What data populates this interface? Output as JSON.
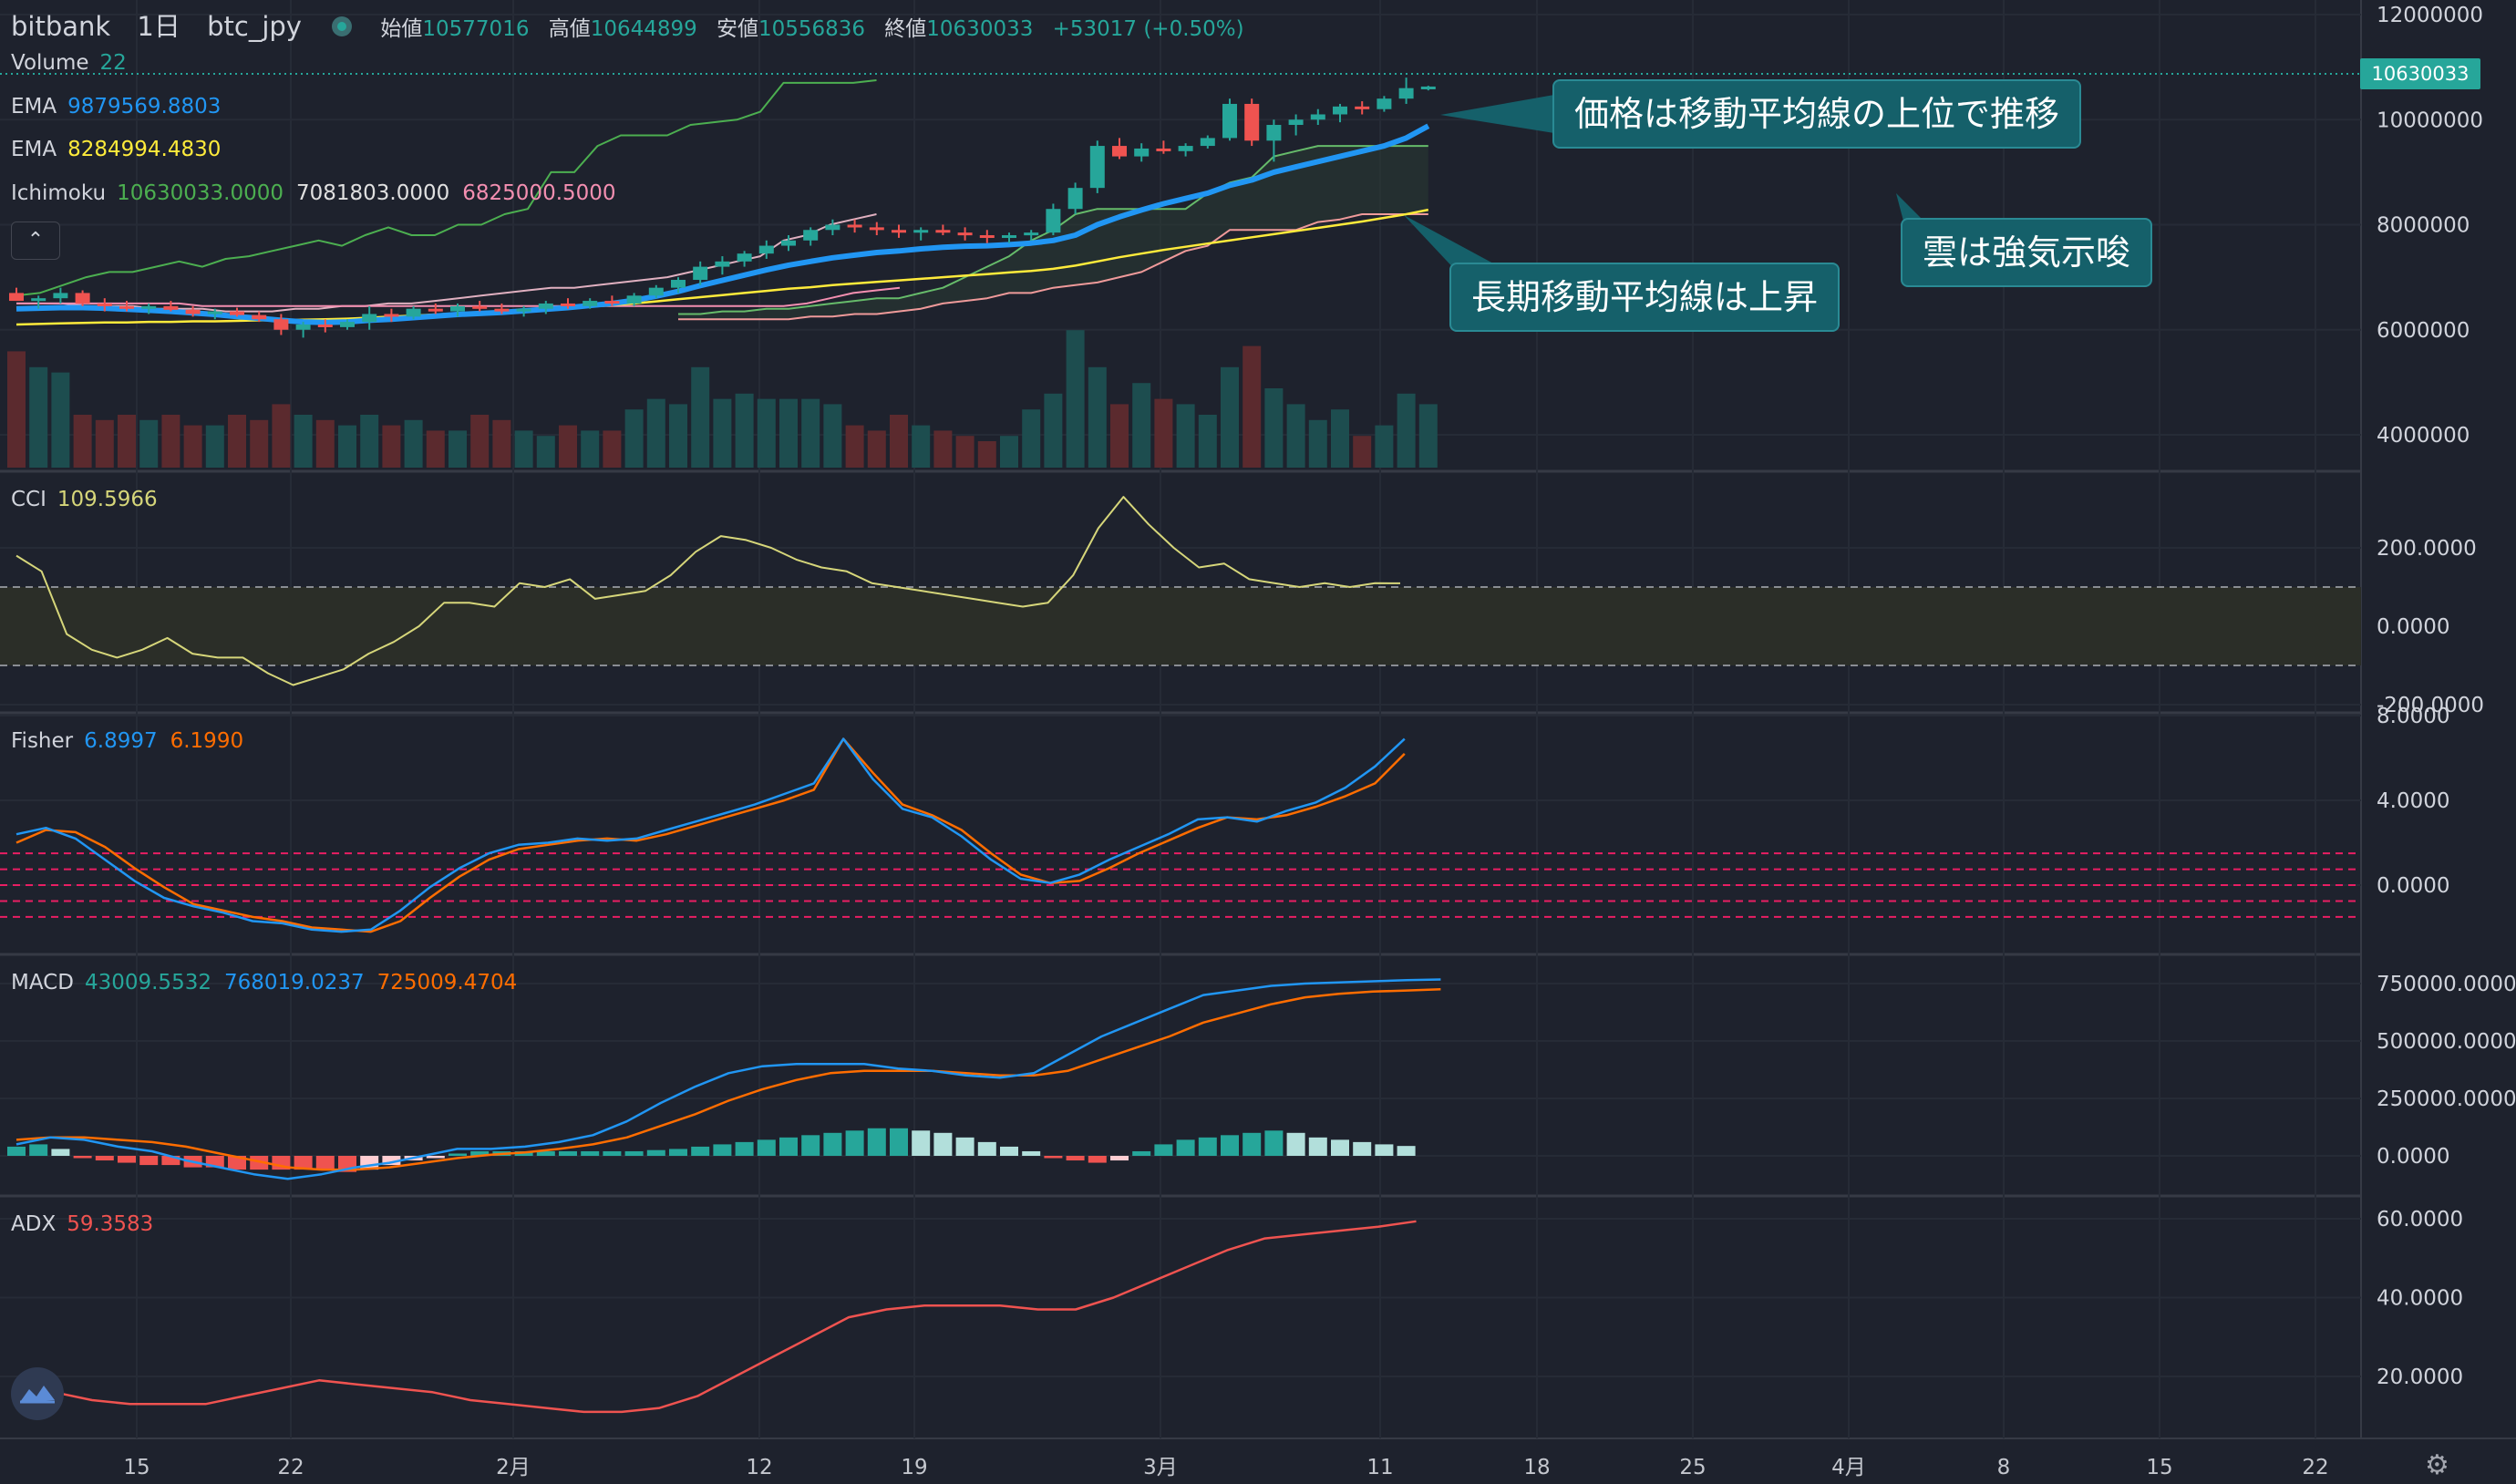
{
  "header": {
    "symbol": "bitbank",
    "interval": "1日",
    "pair": "btc_jpy",
    "open_label": "始値",
    "open": "10577016",
    "high_label": "高値",
    "high": "10644899",
    "low_label": "安値",
    "low": "10556836",
    "close_label": "終値",
    "close": "10630033",
    "change": "+53017 (+0.50%)"
  },
  "legends": {
    "volume": {
      "label": "Volume",
      "value": "22"
    },
    "ema1": {
      "label": "EMA",
      "value": "9879569.8803"
    },
    "ema2": {
      "label": "EMA",
      "value": "8284994.4830"
    },
    "ichimoku": {
      "label": "Ichimoku",
      "v1": "10630033.0000",
      "v2": "7081803.0000",
      "v3": "6825000.5000"
    },
    "cci": {
      "label": "CCI",
      "value": "109.5966"
    },
    "fisher": {
      "label": "Fisher",
      "v1": "6.8997",
      "v2": "6.1990"
    },
    "macd": {
      "label": "MACD",
      "v1": "43009.5532",
      "v2": "768019.0237",
      "v3": "725009.4704"
    },
    "adx": {
      "label": "ADX",
      "value": "59.3583"
    }
  },
  "collapse_glyph": "⌃",
  "annotations": [
    {
      "text": "価格は移動平均線の上位で推移"
    },
    {
      "text": "長期移動平均線は上昇"
    },
    {
      "text": "雲は強気示唆"
    }
  ],
  "current_price_tag": "10630033",
  "colors": {
    "up": "#26a69a",
    "down": "#ef5350",
    "ema_fast": "#2196f3",
    "ema_slow": "#ffeb3b",
    "ichimoku_lead": "#4caf50",
    "ichimoku_lag": "#f48fb1",
    "cci": "#d6d67a",
    "fisher": "#2196f3",
    "fisher_trigger": "#ff6d00",
    "macd": "#2196f3",
    "macd_signal": "#ff6d00",
    "adx": "#ef5350",
    "callout": "#15606a"
  },
  "chart_data": {
    "type": "candlestick",
    "x_tick_labels": [
      "15",
      "22",
      "2月",
      "12",
      "19",
      "3月",
      "11",
      "18",
      "25",
      "4月",
      "8",
      "15",
      "22"
    ],
    "price_axis": {
      "ticks": [
        "12000000",
        "10000000",
        "8000000",
        "6000000",
        "4000000"
      ],
      "tick_values": [
        12000000,
        10000000,
        8000000,
        6000000,
        4000000
      ]
    },
    "cci_axis": {
      "ticks": [
        "200.0000",
        "0.0000",
        "-200.0000"
      ],
      "tick_values": [
        200,
        0,
        -200
      ],
      "band": [
        100,
        -100
      ]
    },
    "fisher_axis": {
      "ticks": [
        "8.0000",
        "4.0000",
        "0.0000"
      ],
      "tick_values": [
        8,
        4,
        0
      ],
      "levels": [
        1.5,
        0.75,
        0,
        -0.75,
        -1.5
      ]
    },
    "macd_axis": {
      "ticks": [
        "750000.0000",
        "500000.0000",
        "250000.0000",
        "0.0000"
      ],
      "tick_values": [
        750000,
        500000,
        250000,
        0
      ]
    },
    "adx_axis": {
      "ticks": [
        "60.0000",
        "40.0000",
        "20.0000"
      ],
      "tick_values": [
        60,
        40,
        20
      ]
    },
    "candles": [
      [
        6700000,
        6800000,
        6550000,
        6550000
      ],
      [
        6550000,
        6650000,
        6400000,
        6600000
      ],
      [
        6600000,
        6800000,
        6500000,
        6700000
      ],
      [
        6700000,
        6750000,
        6450000,
        6500000
      ],
      [
        6500000,
        6600000,
        6350000,
        6450000
      ],
      [
        6450000,
        6550000,
        6350000,
        6400000
      ],
      [
        6400000,
        6500000,
        6300000,
        6450000
      ],
      [
        6450000,
        6550000,
        6350000,
        6380000
      ],
      [
        6380000,
        6450000,
        6250000,
        6300000
      ],
      [
        6300000,
        6400000,
        6200000,
        6350000
      ],
      [
        6350000,
        6420000,
        6250000,
        6280000
      ],
      [
        6280000,
        6350000,
        6150000,
        6200000
      ],
      [
        6200000,
        6300000,
        5900000,
        6000000
      ],
      [
        6000000,
        6150000,
        5850000,
        6100000
      ],
      [
        6100000,
        6200000,
        5950000,
        6050000
      ],
      [
        6050000,
        6200000,
        6000000,
        6150000
      ],
      [
        6150000,
        6450000,
        6000000,
        6300000
      ],
      [
        6300000,
        6400000,
        6150000,
        6250000
      ],
      [
        6250000,
        6450000,
        6200000,
        6400000
      ],
      [
        6400000,
        6500000,
        6300000,
        6350000
      ],
      [
        6350000,
        6500000,
        6250000,
        6450000
      ],
      [
        6450000,
        6550000,
        6350000,
        6400000
      ],
      [
        6400000,
        6500000,
        6300000,
        6350000
      ],
      [
        6350000,
        6450000,
        6250000,
        6400000
      ],
      [
        6400000,
        6550000,
        6300000,
        6500000
      ],
      [
        6500000,
        6600000,
        6400000,
        6450000
      ],
      [
        6450000,
        6600000,
        6400000,
        6550000
      ],
      [
        6550000,
        6650000,
        6450000,
        6500000
      ],
      [
        6500000,
        6700000,
        6450000,
        6650000
      ],
      [
        6650000,
        6850000,
        6600000,
        6800000
      ],
      [
        6800000,
        7000000,
        6700000,
        6950000
      ],
      [
        6950000,
        7300000,
        6850000,
        7200000
      ],
      [
        7200000,
        7400000,
        7050000,
        7300000
      ],
      [
        7300000,
        7500000,
        7200000,
        7450000
      ],
      [
        7450000,
        7700000,
        7350000,
        7600000
      ],
      [
        7600000,
        7800000,
        7500000,
        7700000
      ],
      [
        7700000,
        7950000,
        7600000,
        7900000
      ],
      [
        7900000,
        8100000,
        7800000,
        8000000
      ],
      [
        8000000,
        8100000,
        7850000,
        7950000
      ],
      [
        7950000,
        8050000,
        7800000,
        7900000
      ],
      [
        7900000,
        8000000,
        7750000,
        7850000
      ],
      [
        7850000,
        7950000,
        7700000,
        7900000
      ],
      [
        7900000,
        8000000,
        7800000,
        7850000
      ],
      [
        7850000,
        7950000,
        7700000,
        7800000
      ],
      [
        7800000,
        7900000,
        7650000,
        7750000
      ],
      [
        7750000,
        7850000,
        7650000,
        7800000
      ],
      [
        7800000,
        7900000,
        7700000,
        7850000
      ],
      [
        7850000,
        8400000,
        7800000,
        8300000
      ],
      [
        8300000,
        8800000,
        8200000,
        8700000
      ],
      [
        8700000,
        9600000,
        8600000,
        9500000
      ],
      [
        9500000,
        9650000,
        9250000,
        9300000
      ],
      [
        9300000,
        9550000,
        9200000,
        9450000
      ],
      [
        9450000,
        9600000,
        9350000,
        9400000
      ],
      [
        9400000,
        9550000,
        9300000,
        9500000
      ],
      [
        9500000,
        9700000,
        9450000,
        9650000
      ],
      [
        9650000,
        10400000,
        9600000,
        10300000
      ],
      [
        10300000,
        10400000,
        9500000,
        9600000
      ],
      [
        9600000,
        10000000,
        9200000,
        9900000
      ],
      [
        9900000,
        10100000,
        9700000,
        10000000
      ],
      [
        10000000,
        10200000,
        9900000,
        10100000
      ],
      [
        10100000,
        10300000,
        9950000,
        10250000
      ],
      [
        10250000,
        10350000,
        10100000,
        10200000
      ],
      [
        10200000,
        10450000,
        10150000,
        10400000
      ],
      [
        10400000,
        10800000,
        10300000,
        10600000
      ],
      [
        10577016,
        10644899,
        10556836,
        10630033
      ]
    ],
    "volume": [
      2.2,
      1.9,
      1.8,
      1.0,
      0.9,
      1.0,
      0.9,
      1.0,
      0.8,
      0.8,
      1.0,
      0.9,
      1.2,
      1.0,
      0.9,
      0.8,
      1.0,
      0.8,
      0.9,
      0.7,
      0.7,
      1.0,
      0.9,
      0.7,
      0.6,
      0.8,
      0.7,
      0.7,
      1.1,
      1.3,
      1.2,
      1.9,
      1.3,
      1.4,
      1.3,
      1.3,
      1.3,
      1.2,
      0.8,
      0.7,
      1.0,
      0.8,
      0.7,
      0.6,
      0.5,
      0.6,
      1.1,
      1.4,
      2.6,
      1.9,
      1.2,
      1.6,
      1.3,
      1.2,
      1.0,
      1.9,
      2.3,
      1.5,
      1.2,
      0.9,
      1.1,
      0.6,
      0.8,
      1.4,
      1.2
    ],
    "ema_fast": [
      6400000,
      6410000,
      6420000,
      6420000,
      6410000,
      6390000,
      6370000,
      6350000,
      6320000,
      6290000,
      6250000,
      6220000,
      6180000,
      6150000,
      6140000,
      6150000,
      6180000,
      6200000,
      6230000,
      6260000,
      6290000,
      6310000,
      6330000,
      6360000,
      6390000,
      6420000,
      6460000,
      6500000,
      6560000,
      6640000,
      6730000,
      6840000,
      6940000,
      7040000,
      7140000,
      7230000,
      7300000,
      7370000,
      7420000,
      7470000,
      7500000,
      7540000,
      7570000,
      7590000,
      7600000,
      7620000,
      7650000,
      7700000,
      7800000,
      8000000,
      8150000,
      8280000,
      8400000,
      8500000,
      8600000,
      8750000,
      8850000,
      9000000,
      9100000,
      9200000,
      9300000,
      9400000,
      9500000,
      9650000,
      9879569
    ],
    "ema_slow": [
      6100000,
      6110000,
      6120000,
      6130000,
      6140000,
      6140000,
      6150000,
      6150000,
      6160000,
      6160000,
      6170000,
      6180000,
      6180000,
      6190000,
      6200000,
      6210000,
      6230000,
      6250000,
      6270000,
      6290000,
      6310000,
      6330000,
      6350000,
      6370000,
      6390000,
      6410000,
      6440000,
      6470000,
      6500000,
      6540000,
      6580000,
      6620000,
      6660000,
      6700000,
      6740000,
      6780000,
      6810000,
      6850000,
      6880000,
      6910000,
      6940000,
      6970000,
      7000000,
      7030000,
      7060000,
      7090000,
      7120000,
      7160000,
      7220000,
      7300000,
      7380000,
      7450000,
      7520000,
      7580000,
      7640000,
      7700000,
      7760000,
      7820000,
      7880000,
      7940000,
      8000000,
      8060000,
      8130000,
      8200000,
      8284994
    ],
    "ichimoku_lead": [
      6650000,
      6700000,
      6850000,
      7000000,
      7100000,
      7100000,
      7200000,
      7300000,
      7200000,
      7350000,
      7400000,
      7500000,
      7600000,
      7700000,
      7600000,
      7800000,
      7950000,
      7800000,
      7800000,
      8000000,
      8000000,
      8200000,
      8300000,
      9000000,
      9000000,
      9500000,
      9700000,
      9700000,
      9700000,
      9900000,
      9950000,
      10000000,
      10150000,
      10700000,
      10700000,
      10700000,
      10700000,
      10750000
    ],
    "ichimoku_lag": [
      6500000,
      6500000,
      6500000,
      6450000,
      6450000,
      6450000,
      6400000,
      6400000,
      6400000,
      6350000,
      6350000,
      6350000,
      6400000,
      6400000,
      6450000,
      6450000,
      6500000,
      6500000,
      6550000,
      6600000,
      6650000,
      6700000,
      6750000,
      6800000,
      6800000,
      6850000,
      6900000,
      6950000,
      7000000,
      7100000,
      7200000,
      7300000,
      7400000,
      7700000,
      7800000,
      8000000,
      8100000,
      8200000
    ],
    "base_line": [
      6500000,
      6500000,
      6500000,
      6500000,
      6500000,
      6500000,
      6500000,
      6500000,
      6450000,
      6450000,
      6450000,
      6450000,
      6450000,
      6450000,
      6450000,
      6450000,
      6450000,
      6450000,
      6450000,
      6450000,
      6450000,
      6450000,
      6450000,
      6450000,
      6450000,
      6450000,
      6450000,
      6450000,
      6450000,
      6450000,
      6450000,
      6450000,
      6450000,
      6450000,
      6500000,
      6600000,
      6700000,
      6750000,
      6800000
    ],
    "cloud_a": [
      6300000,
      6300000,
      6350000,
      6350000,
      6400000,
      6400000,
      6450000,
      6500000,
      6550000,
      6600000,
      6600000,
      6700000,
      6800000,
      7000000,
      7200000,
      7400000,
      7700000,
      7900000,
      8200000,
      8300000,
      8300000,
      8300000,
      8300000,
      8300000,
      8600000,
      8800000,
      8900000,
      9300000,
      9400000,
      9500000,
      9500000,
      9500000,
      9500000,
      9500000,
      9500000
    ],
    "cloud_b": [
      6200000,
      6200000,
      6200000,
      6200000,
      6200000,
      6200000,
      6250000,
      6250000,
      6300000,
      6300000,
      6350000,
      6400000,
      6500000,
      6550000,
      6600000,
      6700000,
      6700000,
      6800000,
      6850000,
      6900000,
      7000000,
      7100000,
      7300000,
      7500000,
      7600000,
      7900000,
      7900000,
      7900000,
      7900000,
      8050000,
      8100000,
      8200000,
      8200000,
      8200000,
      8200000
    ],
    "cci": [
      180,
      140,
      -20,
      -60,
      -80,
      -60,
      -30,
      -70,
      -80,
      -80,
      -120,
      -150,
      -130,
      -110,
      -70,
      -40,
      0,
      60,
      60,
      50,
      110,
      100,
      120,
      70,
      80,
      90,
      130,
      190,
      230,
      220,
      200,
      170,
      150,
      140,
      110,
      100,
      90,
      80,
      70,
      60,
      50,
      60,
      130,
      250,
      330,
      260,
      200,
      150,
      160,
      120,
      110,
      100,
      110,
      100,
      110,
      109.5966
    ],
    "fisher": [
      2.4,
      2.7,
      2.2,
      1.2,
      0.2,
      -0.6,
      -1.0,
      -1.3,
      -1.7,
      -1.8,
      -2.1,
      -2.2,
      -2.1,
      -1.2,
      -0.1,
      0.8,
      1.5,
      1.9,
      2.0,
      2.2,
      2.1,
      2.2,
      2.6,
      3.0,
      3.4,
      3.8,
      4.3,
      4.8,
      6.9,
      5.0,
      3.6,
      3.2,
      2.3,
      1.2,
      0.3,
      0.1,
      0.5,
      1.2,
      1.8,
      2.4,
      3.1,
      3.2,
      3.0,
      3.5,
      3.9,
      4.6,
      5.6,
      6.8997
    ],
    "fisher_trigger": [
      2.0,
      2.6,
      2.5,
      1.8,
      0.8,
      -0.1,
      -0.9,
      -1.2,
      -1.5,
      -1.7,
      -2.0,
      -2.1,
      -2.2,
      -1.7,
      -0.6,
      0.4,
      1.2,
      1.7,
      1.9,
      2.1,
      2.2,
      2.1,
      2.4,
      2.8,
      3.2,
      3.6,
      4.0,
      4.5,
      6.9,
      5.3,
      3.8,
      3.3,
      2.6,
      1.5,
      0.5,
      0.1,
      0.2,
      0.8,
      1.5,
      2.1,
      2.7,
      3.2,
      3.1,
      3.3,
      3.7,
      4.2,
      4.8,
      6.199
    ],
    "macd": [
      50000,
      80000,
      70000,
      40000,
      20000,
      -20000,
      -50000,
      -80000,
      -100000,
      -80000,
      -50000,
      -30000,
      0,
      30000,
      30000,
      40000,
      60000,
      90000,
      150000,
      230000,
      300000,
      360000,
      390000,
      400000,
      400000,
      400000,
      380000,
      370000,
      350000,
      340000,
      360000,
      440000,
      520000,
      580000,
      640000,
      700000,
      720000,
      740000,
      750000,
      755000,
      760000,
      765000,
      768019
    ],
    "macd_signal": [
      70000,
      80000,
      80000,
      70000,
      60000,
      40000,
      10000,
      -20000,
      -50000,
      -60000,
      -60000,
      -50000,
      -30000,
      -10000,
      5000,
      15000,
      30000,
      50000,
      80000,
      130000,
      180000,
      240000,
      290000,
      330000,
      360000,
      370000,
      370000,
      370000,
      360000,
      350000,
      350000,
      370000,
      420000,
      470000,
      520000,
      580000,
      620000,
      660000,
      690000,
      705000,
      715000,
      720000,
      725009
    ],
    "macd_hist": [
      40000,
      50000,
      30000,
      -10000,
      -20000,
      -30000,
      -40000,
      -40000,
      -50000,
      -50000,
      -60000,
      -60000,
      -60000,
      -60000,
      -60000,
      -70000,
      -60000,
      -40000,
      -20000,
      -10000,
      10000,
      20000,
      20000,
      20000,
      20000,
      20000,
      20000,
      20000,
      20000,
      25000,
      30000,
      40000,
      50000,
      60000,
      70000,
      80000,
      90000,
      100000,
      110000,
      120000,
      120000,
      110000,
      100000,
      80000,
      60000,
      40000,
      20000,
      -10000,
      -20000,
      -30000,
      -20000,
      20000,
      50000,
      70000,
      80000,
      90000,
      100000,
      110000,
      100000,
      80000,
      70000,
      60000,
      50000,
      43000
    ],
    "adx": [
      17,
      16,
      14,
      13,
      13,
      13,
      15,
      17,
      19,
      18,
      17,
      16,
      14,
      13,
      12,
      11,
      11,
      12,
      15,
      20,
      25,
      30,
      35,
      37,
      38,
      38,
      38,
      37,
      37,
      40,
      44,
      48,
      52,
      55,
      56,
      57,
      58,
      59.3583
    ]
  }
}
